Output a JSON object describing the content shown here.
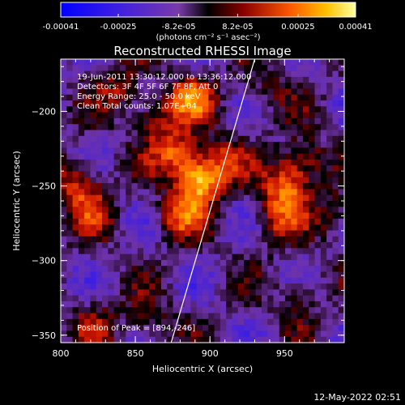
{
  "chart_data": {
    "type": "heatmap",
    "title": "Reconstructed RHESSI Image",
    "xlabel": "Heliocentric X (arcsec)",
    "ylabel": "Heliocentric Y (arcsec)",
    "xlim": [
      800,
      990
    ],
    "ylim": [
      -355,
      -165
    ],
    "x_ticks": [
      800,
      850,
      900,
      950
    ],
    "y_ticks": [
      -200,
      -250,
      -300,
      -350
    ],
    "colorbar": {
      "tick_labels": [
        "-0.00041",
        "-0.00025",
        "-8.2e-05",
        "8.2e-05",
        "0.00025",
        "0.00041"
      ],
      "tick_values": [
        -0.00041,
        -0.00025,
        -8.2e-05,
        8.2e-05,
        0.00025,
        0.00041
      ],
      "range": [
        -0.00041,
        0.00041
      ],
      "units_label": "(photons cm⁻² s⁻¹ asec⁻²)"
    },
    "annotations": [
      "19-Jun-2011 13:30:12.000 to 13:36:12.000",
      "Detectors: 3F 4F 5F 6F 7F 8F, Att 0",
      "Energy Range: 25.0 - 50.0 keV",
      "Clean     Total counts: 1.07E+04"
    ],
    "peak_label": "Position of Peak = [894,-246]",
    "limb_line": [
      [
        874,
        -355
      ],
      [
        930,
        -165
      ]
    ],
    "sources": [
      {
        "x": 893,
        "y": -247,
        "peak": 0.00041
      },
      {
        "x": 878,
        "y": -228,
        "peak": 0.00029
      },
      {
        "x": 880,
        "y": -270,
        "peak": 0.00024
      },
      {
        "x": 888,
        "y": -192,
        "peak": 0.00028
      },
      {
        "x": 862,
        "y": -205,
        "peak": 0.00018
      },
      {
        "x": 908,
        "y": -232,
        "peak": 0.00019
      },
      {
        "x": 950,
        "y": -252,
        "peak": 0.0003
      },
      {
        "x": 962,
        "y": -233,
        "peak": 0.00024
      },
      {
        "x": 945,
        "y": -275,
        "peak": 0.00018
      },
      {
        "x": 812,
        "y": -248,
        "peak": 0.00024
      },
      {
        "x": 822,
        "y": -268,
        "peak": 0.00016
      },
      {
        "x": 840,
        "y": -185,
        "peak": 0.00016
      },
      {
        "x": 822,
        "y": -342,
        "peak": 0.00014
      },
      {
        "x": 858,
        "y": -340,
        "peak": 0.00013
      },
      {
        "x": 960,
        "y": -325,
        "peak": 0.00013
      },
      {
        "x": 985,
        "y": -268,
        "peak": 0.00014
      },
      {
        "x": 935,
        "y": -185,
        "peak": 0.00012
      }
    ]
  },
  "footer": {
    "timestamp": "12-May-2022 02:51"
  }
}
